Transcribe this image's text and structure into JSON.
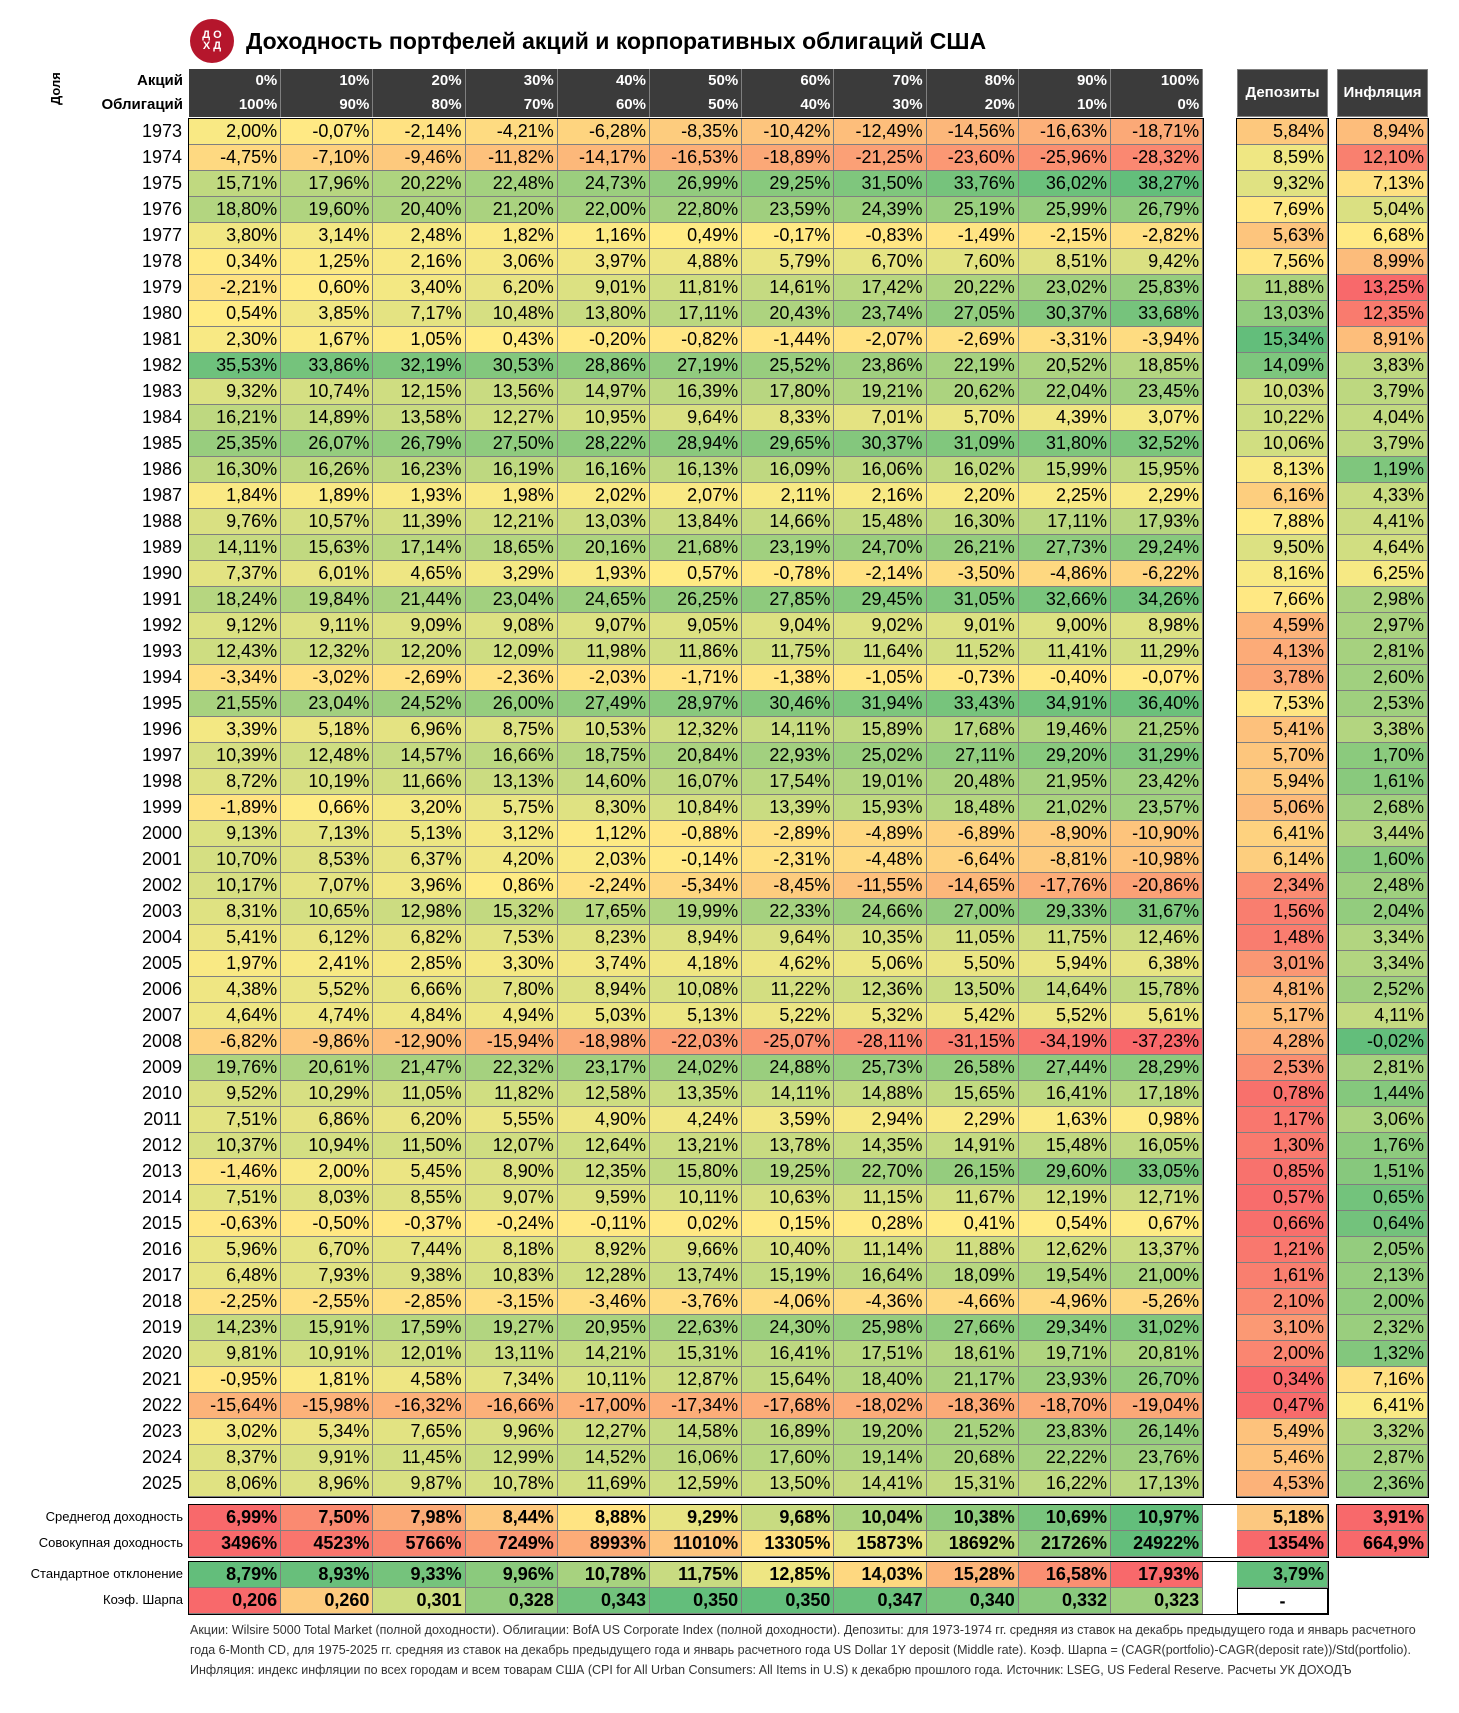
{
  "title": "Доходность портфелей акций и корпоративных облигаций США",
  "logo_text": "Д О Х Д",
  "header": {
    "share_label": "Доля",
    "stocks_label": "Акций",
    "bonds_label": "Облигаций",
    "stocks_pct": [
      "0%",
      "10%",
      "20%",
      "30%",
      "40%",
      "50%",
      "60%",
      "70%",
      "80%",
      "90%",
      "100%"
    ],
    "bonds_pct": [
      "100%",
      "90%",
      "80%",
      "70%",
      "60%",
      "50%",
      "40%",
      "30%",
      "20%",
      "10%",
      "0%"
    ],
    "deposits_label": "Депозиты",
    "inflation_label": "Инфляция"
  },
  "chart_data": {
    "type": "table",
    "years": [
      "1973",
      "1974",
      "1975",
      "1976",
      "1977",
      "1978",
      "1979",
      "1980",
      "1981",
      "1982",
      "1983",
      "1984",
      "1985",
      "1986",
      "1987",
      "1988",
      "1989",
      "1990",
      "1991",
      "1992",
      "1993",
      "1994",
      "1995",
      "1996",
      "1997",
      "1998",
      "1999",
      "2000",
      "2001",
      "2002",
      "2003",
      "2004",
      "2005",
      "2006",
      "2007",
      "2008",
      "2009",
      "2010",
      "2011",
      "2012",
      "2013",
      "2014",
      "2015",
      "2016",
      "2017",
      "2018",
      "2019",
      "2020",
      "2021",
      "2022",
      "2023",
      "2024",
      "2025"
    ],
    "portfolios": [
      [
        "2,00%",
        "-0,07%",
        "-2,14%",
        "-4,21%",
        "-6,28%",
        "-8,35%",
        "-10,42%",
        "-12,49%",
        "-14,56%",
        "-16,63%",
        "-18,71%"
      ],
      [
        "-4,75%",
        "-7,10%",
        "-9,46%",
        "-11,82%",
        "-14,17%",
        "-16,53%",
        "-18,89%",
        "-21,25%",
        "-23,60%",
        "-25,96%",
        "-28,32%"
      ],
      [
        "15,71%",
        "17,96%",
        "20,22%",
        "22,48%",
        "24,73%",
        "26,99%",
        "29,25%",
        "31,50%",
        "33,76%",
        "36,02%",
        "38,27%"
      ],
      [
        "18,80%",
        "19,60%",
        "20,40%",
        "21,20%",
        "22,00%",
        "22,80%",
        "23,59%",
        "24,39%",
        "25,19%",
        "25,99%",
        "26,79%"
      ],
      [
        "3,80%",
        "3,14%",
        "2,48%",
        "1,82%",
        "1,16%",
        "0,49%",
        "-0,17%",
        "-0,83%",
        "-1,49%",
        "-2,15%",
        "-2,82%"
      ],
      [
        "0,34%",
        "1,25%",
        "2,16%",
        "3,06%",
        "3,97%",
        "4,88%",
        "5,79%",
        "6,70%",
        "7,60%",
        "8,51%",
        "9,42%"
      ],
      [
        "-2,21%",
        "0,60%",
        "3,40%",
        "6,20%",
        "9,01%",
        "11,81%",
        "14,61%",
        "17,42%",
        "20,22%",
        "23,02%",
        "25,83%"
      ],
      [
        "0,54%",
        "3,85%",
        "7,17%",
        "10,48%",
        "13,80%",
        "17,11%",
        "20,43%",
        "23,74%",
        "27,05%",
        "30,37%",
        "33,68%"
      ],
      [
        "2,30%",
        "1,67%",
        "1,05%",
        "0,43%",
        "-0,20%",
        "-0,82%",
        "-1,44%",
        "-2,07%",
        "-2,69%",
        "-3,31%",
        "-3,94%"
      ],
      [
        "35,53%",
        "33,86%",
        "32,19%",
        "30,53%",
        "28,86%",
        "27,19%",
        "25,52%",
        "23,86%",
        "22,19%",
        "20,52%",
        "18,85%"
      ],
      [
        "9,32%",
        "10,74%",
        "12,15%",
        "13,56%",
        "14,97%",
        "16,39%",
        "17,80%",
        "19,21%",
        "20,62%",
        "22,04%",
        "23,45%"
      ],
      [
        "16,21%",
        "14,89%",
        "13,58%",
        "12,27%",
        "10,95%",
        "9,64%",
        "8,33%",
        "7,01%",
        "5,70%",
        "4,39%",
        "3,07%"
      ],
      [
        "25,35%",
        "26,07%",
        "26,79%",
        "27,50%",
        "28,22%",
        "28,94%",
        "29,65%",
        "30,37%",
        "31,09%",
        "31,80%",
        "32,52%"
      ],
      [
        "16,30%",
        "16,26%",
        "16,23%",
        "16,19%",
        "16,16%",
        "16,13%",
        "16,09%",
        "16,06%",
        "16,02%",
        "15,99%",
        "15,95%"
      ],
      [
        "1,84%",
        "1,89%",
        "1,93%",
        "1,98%",
        "2,02%",
        "2,07%",
        "2,11%",
        "2,16%",
        "2,20%",
        "2,25%",
        "2,29%"
      ],
      [
        "9,76%",
        "10,57%",
        "11,39%",
        "12,21%",
        "13,03%",
        "13,84%",
        "14,66%",
        "15,48%",
        "16,30%",
        "17,11%",
        "17,93%"
      ],
      [
        "14,11%",
        "15,63%",
        "17,14%",
        "18,65%",
        "20,16%",
        "21,68%",
        "23,19%",
        "24,70%",
        "26,21%",
        "27,73%",
        "29,24%"
      ],
      [
        "7,37%",
        "6,01%",
        "4,65%",
        "3,29%",
        "1,93%",
        "0,57%",
        "-0,78%",
        "-2,14%",
        "-3,50%",
        "-4,86%",
        "-6,22%"
      ],
      [
        "18,24%",
        "19,84%",
        "21,44%",
        "23,04%",
        "24,65%",
        "26,25%",
        "27,85%",
        "29,45%",
        "31,05%",
        "32,66%",
        "34,26%"
      ],
      [
        "9,12%",
        "9,11%",
        "9,09%",
        "9,08%",
        "9,07%",
        "9,05%",
        "9,04%",
        "9,02%",
        "9,01%",
        "9,00%",
        "8,98%"
      ],
      [
        "12,43%",
        "12,32%",
        "12,20%",
        "12,09%",
        "11,98%",
        "11,86%",
        "11,75%",
        "11,64%",
        "11,52%",
        "11,41%",
        "11,29%"
      ],
      [
        "-3,34%",
        "-3,02%",
        "-2,69%",
        "-2,36%",
        "-2,03%",
        "-1,71%",
        "-1,38%",
        "-1,05%",
        "-0,73%",
        "-0,40%",
        "-0,07%"
      ],
      [
        "21,55%",
        "23,04%",
        "24,52%",
        "26,00%",
        "27,49%",
        "28,97%",
        "30,46%",
        "31,94%",
        "33,43%",
        "34,91%",
        "36,40%"
      ],
      [
        "3,39%",
        "5,18%",
        "6,96%",
        "8,75%",
        "10,53%",
        "12,32%",
        "14,11%",
        "15,89%",
        "17,68%",
        "19,46%",
        "21,25%"
      ],
      [
        "10,39%",
        "12,48%",
        "14,57%",
        "16,66%",
        "18,75%",
        "20,84%",
        "22,93%",
        "25,02%",
        "27,11%",
        "29,20%",
        "31,29%"
      ],
      [
        "8,72%",
        "10,19%",
        "11,66%",
        "13,13%",
        "14,60%",
        "16,07%",
        "17,54%",
        "19,01%",
        "20,48%",
        "21,95%",
        "23,42%"
      ],
      [
        "-1,89%",
        "0,66%",
        "3,20%",
        "5,75%",
        "8,30%",
        "10,84%",
        "13,39%",
        "15,93%",
        "18,48%",
        "21,02%",
        "23,57%"
      ],
      [
        "9,13%",
        "7,13%",
        "5,13%",
        "3,12%",
        "1,12%",
        "-0,88%",
        "-2,89%",
        "-4,89%",
        "-6,89%",
        "-8,90%",
        "-10,90%"
      ],
      [
        "10,70%",
        "8,53%",
        "6,37%",
        "4,20%",
        "2,03%",
        "-0,14%",
        "-2,31%",
        "-4,48%",
        "-6,64%",
        "-8,81%",
        "-10,98%"
      ],
      [
        "10,17%",
        "7,07%",
        "3,96%",
        "0,86%",
        "-2,24%",
        "-5,34%",
        "-8,45%",
        "-11,55%",
        "-14,65%",
        "-17,76%",
        "-20,86%"
      ],
      [
        "8,31%",
        "10,65%",
        "12,98%",
        "15,32%",
        "17,65%",
        "19,99%",
        "22,33%",
        "24,66%",
        "27,00%",
        "29,33%",
        "31,67%"
      ],
      [
        "5,41%",
        "6,12%",
        "6,82%",
        "7,53%",
        "8,23%",
        "8,94%",
        "9,64%",
        "10,35%",
        "11,05%",
        "11,75%",
        "12,46%"
      ],
      [
        "1,97%",
        "2,41%",
        "2,85%",
        "3,30%",
        "3,74%",
        "4,18%",
        "4,62%",
        "5,06%",
        "5,50%",
        "5,94%",
        "6,38%"
      ],
      [
        "4,38%",
        "5,52%",
        "6,66%",
        "7,80%",
        "8,94%",
        "10,08%",
        "11,22%",
        "12,36%",
        "13,50%",
        "14,64%",
        "15,78%"
      ],
      [
        "4,64%",
        "4,74%",
        "4,84%",
        "4,94%",
        "5,03%",
        "5,13%",
        "5,22%",
        "5,32%",
        "5,42%",
        "5,52%",
        "5,61%"
      ],
      [
        "-6,82%",
        "-9,86%",
        "-12,90%",
        "-15,94%",
        "-18,98%",
        "-22,03%",
        "-25,07%",
        "-28,11%",
        "-31,15%",
        "-34,19%",
        "-37,23%"
      ],
      [
        "19,76%",
        "20,61%",
        "21,47%",
        "22,32%",
        "23,17%",
        "24,02%",
        "24,88%",
        "25,73%",
        "26,58%",
        "27,44%",
        "28,29%"
      ],
      [
        "9,52%",
        "10,29%",
        "11,05%",
        "11,82%",
        "12,58%",
        "13,35%",
        "14,11%",
        "14,88%",
        "15,65%",
        "16,41%",
        "17,18%"
      ],
      [
        "7,51%",
        "6,86%",
        "6,20%",
        "5,55%",
        "4,90%",
        "4,24%",
        "3,59%",
        "2,94%",
        "2,29%",
        "1,63%",
        "0,98%"
      ],
      [
        "10,37%",
        "10,94%",
        "11,50%",
        "12,07%",
        "12,64%",
        "13,21%",
        "13,78%",
        "14,35%",
        "14,91%",
        "15,48%",
        "16,05%"
      ],
      [
        "-1,46%",
        "2,00%",
        "5,45%",
        "8,90%",
        "12,35%",
        "15,80%",
        "19,25%",
        "22,70%",
        "26,15%",
        "29,60%",
        "33,05%"
      ],
      [
        "7,51%",
        "8,03%",
        "8,55%",
        "9,07%",
        "9,59%",
        "10,11%",
        "10,63%",
        "11,15%",
        "11,67%",
        "12,19%",
        "12,71%"
      ],
      [
        "-0,63%",
        "-0,50%",
        "-0,37%",
        "-0,24%",
        "-0,11%",
        "0,02%",
        "0,15%",
        "0,28%",
        "0,41%",
        "0,54%",
        "0,67%"
      ],
      [
        "5,96%",
        "6,70%",
        "7,44%",
        "8,18%",
        "8,92%",
        "9,66%",
        "10,40%",
        "11,14%",
        "11,88%",
        "12,62%",
        "13,37%"
      ],
      [
        "6,48%",
        "7,93%",
        "9,38%",
        "10,83%",
        "12,28%",
        "13,74%",
        "15,19%",
        "16,64%",
        "18,09%",
        "19,54%",
        "21,00%"
      ],
      [
        "-2,25%",
        "-2,55%",
        "-2,85%",
        "-3,15%",
        "-3,46%",
        "-3,76%",
        "-4,06%",
        "-4,36%",
        "-4,66%",
        "-4,96%",
        "-5,26%"
      ],
      [
        "14,23%",
        "15,91%",
        "17,59%",
        "19,27%",
        "20,95%",
        "22,63%",
        "24,30%",
        "25,98%",
        "27,66%",
        "29,34%",
        "31,02%"
      ],
      [
        "9,81%",
        "10,91%",
        "12,01%",
        "13,11%",
        "14,21%",
        "15,31%",
        "16,41%",
        "17,51%",
        "18,61%",
        "19,71%",
        "20,81%"
      ],
      [
        "-0,95%",
        "1,81%",
        "4,58%",
        "7,34%",
        "10,11%",
        "12,87%",
        "15,64%",
        "18,40%",
        "21,17%",
        "23,93%",
        "26,70%"
      ],
      [
        "-15,64%",
        "-15,98%",
        "-16,32%",
        "-16,66%",
        "-17,00%",
        "-17,34%",
        "-17,68%",
        "-18,02%",
        "-18,36%",
        "-18,70%",
        "-19,04%"
      ],
      [
        "3,02%",
        "5,34%",
        "7,65%",
        "9,96%",
        "12,27%",
        "14,58%",
        "16,89%",
        "19,20%",
        "21,52%",
        "23,83%",
        "26,14%"
      ],
      [
        "8,37%",
        "9,91%",
        "11,45%",
        "12,99%",
        "14,52%",
        "16,06%",
        "17,60%",
        "19,14%",
        "20,68%",
        "22,22%",
        "23,76%"
      ],
      [
        "8,06%",
        "8,96%",
        "9,87%",
        "10,78%",
        "11,69%",
        "12,59%",
        "13,50%",
        "14,41%",
        "15,31%",
        "16,22%",
        "17,13%"
      ]
    ],
    "deposits": [
      "5,84%",
      "8,59%",
      "9,32%",
      "7,69%",
      "5,63%",
      "7,56%",
      "11,88%",
      "13,03%",
      "15,34%",
      "14,09%",
      "10,03%",
      "10,22%",
      "10,06%",
      "8,13%",
      "6,16%",
      "7,88%",
      "9,50%",
      "8,16%",
      "7,66%",
      "4,59%",
      "4,13%",
      "3,78%",
      "7,53%",
      "5,41%",
      "5,70%",
      "5,94%",
      "5,06%",
      "6,41%",
      "6,14%",
      "2,34%",
      "1,56%",
      "1,48%",
      "3,01%",
      "4,81%",
      "5,17%",
      "4,28%",
      "2,53%",
      "0,78%",
      "1,17%",
      "1,30%",
      "0,85%",
      "0,57%",
      "0,66%",
      "1,21%",
      "1,61%",
      "2,10%",
      "3,10%",
      "2,00%",
      "0,34%",
      "0,47%",
      "5,49%",
      "5,46%",
      "4,53%"
    ],
    "inflation": [
      "8,94%",
      "12,10%",
      "7,13%",
      "5,04%",
      "6,68%",
      "8,99%",
      "13,25%",
      "12,35%",
      "8,91%",
      "3,83%",
      "3,79%",
      "4,04%",
      "3,79%",
      "1,19%",
      "4,33%",
      "4,41%",
      "4,64%",
      "6,25%",
      "2,98%",
      "2,97%",
      "2,81%",
      "2,60%",
      "2,53%",
      "3,38%",
      "1,70%",
      "1,61%",
      "2,68%",
      "3,44%",
      "1,60%",
      "2,48%",
      "2,04%",
      "3,34%",
      "3,34%",
      "2,52%",
      "4,11%",
      "-0,02%",
      "2,81%",
      "1,44%",
      "3,06%",
      "1,76%",
      "1,51%",
      "0,65%",
      "0,64%",
      "2,05%",
      "2,13%",
      "2,00%",
      "2,32%",
      "1,32%",
      "7,16%",
      "6,41%",
      "3,32%",
      "2,87%",
      "2,36%"
    ],
    "summary": {
      "avg_label": "Среднегод доходность",
      "avg_values": [
        "6,99%",
        "7,50%",
        "7,98%",
        "8,44%",
        "8,88%",
        "9,29%",
        "9,68%",
        "10,04%",
        "10,38%",
        "10,69%",
        "10,97%"
      ],
      "avg_deposits": "5,18%",
      "avg_inflation": "3,91%",
      "total_label": "Совокупная доходность",
      "total_values": [
        "3496%",
        "4523%",
        "5766%",
        "7249%",
        "8993%",
        "11010%",
        "13305%",
        "15873%",
        "18692%",
        "21726%",
        "24922%"
      ],
      "total_deposits": "1354%",
      "total_inflation": "664,9%",
      "std_label": "Стандартное отклонение",
      "std_values": [
        "8,79%",
        "8,93%",
        "9,33%",
        "9,96%",
        "10,78%",
        "11,75%",
        "12,85%",
        "14,03%",
        "15,28%",
        "16,58%",
        "17,93%"
      ],
      "std_deposits": "3,79%",
      "sharpe_label": "Коэф. Шарпа",
      "sharpe_values": [
        "0,206",
        "0,260",
        "0,301",
        "0,328",
        "0,343",
        "0,350",
        "0,350",
        "0,347",
        "0,340",
        "0,332",
        "0,323"
      ],
      "sharpe_deposits": "-"
    }
  },
  "colors": {
    "scale_low": "#f8696b",
    "scale_mid": "#ffeb84",
    "scale_high": "#63be7b",
    "header_bg": "#3b3b3b",
    "logo": "#b5162c"
  },
  "footnote": "Акции: Wilsire 5000 Total Market (полной доходности). Облигации: BofA US Corporate Index (полной доходности). Депозиты: для 1973-1974 гг. средняя из ставок на декабрь предыдущего года и январь расчетного года 6-Month CD, для 1975-2025 гг. средняя из ставок на декабрь предыдущего года и январь расчетного года US Dollar 1Y deposit (Middle rate). Коэф. Шарпа = (CAGR(portfolio)-CAGR(deposit rate))/Std(portfolio). Инфляция: индекс инфляции по всех городам и всем товарам США (CPI for All Urban Consumers: All Items in U.S) к декабрю прошлого года. Источник: LSEG, US Federal Reserve. Расчеты УК ДОХОДЪ"
}
